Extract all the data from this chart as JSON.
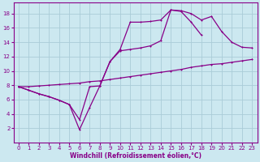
{
  "background_color": "#cce8f0",
  "line_color": "#880088",
  "grid_color": "#aaccd8",
  "xlabel": "Windchill (Refroidissement éolien,°C)",
  "xlim": [
    -0.5,
    23.5
  ],
  "ylim": [
    0,
    19.5
  ],
  "xticks": [
    0,
    1,
    2,
    3,
    4,
    5,
    6,
    7,
    8,
    9,
    10,
    11,
    12,
    13,
    14,
    15,
    16,
    17,
    18,
    19,
    20,
    21,
    22,
    23
  ],
  "yticks": [
    2,
    4,
    6,
    8,
    10,
    12,
    14,
    16,
    18
  ],
  "line1_x": [
    0,
    1,
    2,
    3,
    4,
    5,
    6,
    7,
    8,
    9,
    10,
    11,
    12,
    13,
    14,
    15,
    16,
    17,
    18,
    19,
    20,
    21,
    22,
    23
  ],
  "line1_y": [
    7.8,
    7.3,
    6.8,
    6.4,
    5.9,
    5.3,
    3.2,
    7.8,
    7.9,
    11.3,
    13.0,
    16.8,
    16.8,
    16.9,
    17.1,
    18.5,
    18.4,
    18.0,
    17.1,
    17.6,
    15.5,
    14.0,
    13.3,
    13.2
  ],
  "line2_x": [
    0,
    1,
    2,
    3,
    4,
    5,
    6,
    7,
    8,
    9,
    10,
    11,
    12,
    13,
    14,
    15,
    16,
    17,
    18
  ],
  "line2_y": [
    7.8,
    7.3,
    6.8,
    6.4,
    5.9,
    5.3,
    1.8,
    4.9,
    7.9,
    11.3,
    12.8,
    13.0,
    13.2,
    13.5,
    14.2,
    18.5,
    18.3,
    16.8,
    15.0
  ],
  "line3_x": [
    0,
    1,
    2,
    3,
    4,
    5,
    6,
    7,
    8,
    9,
    10,
    11,
    12,
    13,
    14,
    15,
    16,
    17,
    18,
    19,
    20,
    21,
    22,
    23
  ],
  "line3_y": [
    7.8,
    7.8,
    7.9,
    8.0,
    8.1,
    8.2,
    8.3,
    8.5,
    8.6,
    8.8,
    9.0,
    9.2,
    9.4,
    9.6,
    9.8,
    10.0,
    10.2,
    10.5,
    10.7,
    10.9,
    11.0,
    11.2,
    11.4,
    11.6
  ]
}
